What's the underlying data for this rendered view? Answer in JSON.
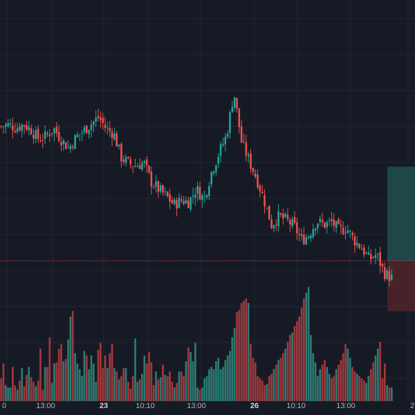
{
  "theme": {
    "background": "#161a25",
    "grid": "#232733",
    "up": "#26a69a",
    "down": "#ef5350",
    "up_volume": "#2b7c74",
    "down_volume": "#a1383c",
    "price_line": "#ef5350",
    "profit_zone": "#1f4a4a",
    "loss_zone": "#4a2328",
    "axis_text": "#b2b5be"
  },
  "chart_data": {
    "type": "candlestick",
    "title": "",
    "xlabel": "",
    "ylabel": "",
    "grid": true,
    "x_tick_labels": [
      {
        "label": "0",
        "bold": false
      },
      {
        "label": "13:00",
        "bold": false
      },
      {
        "label": "23",
        "bold": true
      },
      {
        "label": "10:10",
        "bold": false
      },
      {
        "label": "13:00",
        "bold": false
      },
      {
        "label": "26",
        "bold": true
      },
      {
        "label": "10:10",
        "bold": false
      },
      {
        "label": "13:00",
        "bold": false
      },
      {
        "label": "2",
        "bold": false
      }
    ],
    "close_path": [
      [
        0,
        63.5
      ],
      [
        3,
        63.8
      ],
      [
        6,
        63.2
      ],
      [
        9,
        63.9
      ],
      [
        12,
        62.8
      ],
      [
        15,
        61.0
      ],
      [
        18,
        61.6
      ],
      [
        21,
        63.1
      ],
      [
        24,
        60.9
      ],
      [
        27,
        59.2
      ],
      [
        30,
        61.4
      ],
      [
        33,
        62.7
      ],
      [
        36,
        64.0
      ],
      [
        39,
        65.3
      ],
      [
        42,
        63.0
      ],
      [
        45,
        62.1
      ],
      [
        48,
        57.4
      ],
      [
        51,
        56.2
      ],
      [
        54,
        55.8
      ],
      [
        57,
        56.4
      ],
      [
        60,
        52.6
      ],
      [
        63,
        51.1
      ],
      [
        66,
        49.8
      ],
      [
        69,
        48.2
      ],
      [
        72,
        49.0
      ],
      [
        75,
        48.7
      ],
      [
        78,
        51.3
      ],
      [
        81,
        49.2
      ],
      [
        84,
        54.5
      ],
      [
        87,
        58.3
      ],
      [
        90,
        61.7
      ],
      [
        93,
        70.2
      ],
      [
        96,
        60.5
      ],
      [
        99,
        56.8
      ],
      [
        102,
        53.4
      ],
      [
        105,
        49.1
      ],
      [
        108,
        44.2
      ],
      [
        111,
        45.9
      ],
      [
        114,
        45.1
      ],
      [
        117,
        44.0
      ],
      [
        120,
        41.2
      ],
      [
        123,
        42.3
      ],
      [
        126,
        45.0
      ],
      [
        129,
        44.2
      ],
      [
        132,
        44.8
      ],
      [
        135,
        43.1
      ],
      [
        138,
        43.6
      ],
      [
        141,
        41.2
      ],
      [
        144,
        39.7
      ],
      [
        147,
        37.5
      ],
      [
        150,
        38.4
      ],
      [
        153,
        34.8
      ],
      [
        156,
        33.8
      ]
    ],
    "volume": [
      20,
      33,
      14,
      12,
      12,
      30,
      14,
      10,
      18,
      29,
      13,
      23,
      30,
      21,
      17,
      13,
      18,
      46,
      10,
      30,
      30,
      56,
      16,
      33,
      34,
      46,
      50,
      35,
      37,
      54,
      74,
      79,
      42,
      33,
      28,
      22,
      44,
      40,
      28,
      40,
      33,
      17,
      45,
      51,
      29,
      40,
      29,
      42,
      50,
      29,
      26,
      19,
      22,
      29,
      29,
      17,
      11,
      22,
      55,
      17,
      19,
      24,
      40,
      33,
      43,
      34,
      14,
      26,
      19,
      21,
      32,
      23,
      22,
      26,
      17,
      12,
      16,
      26,
      26,
      22,
      35,
      47,
      43,
      35,
      51,
      12,
      10,
      12,
      20,
      22,
      28,
      30,
      28,
      35,
      38,
      28,
      30,
      36,
      40,
      44,
      56,
      64,
      78,
      80,
      86,
      88,
      90,
      86,
      50,
      38,
      34,
      22,
      20,
      18,
      14,
      15,
      22,
      24,
      28,
      32,
      36,
      38,
      42,
      46,
      52,
      58,
      60,
      66,
      70,
      74,
      82,
      90,
      95,
      100,
      58,
      42,
      34,
      22,
      28,
      32,
      36,
      30,
      24,
      20,
      22,
      28,
      32,
      36,
      42,
      50,
      46,
      38,
      30,
      26,
      24,
      22,
      20,
      18,
      16,
      22,
      28,
      34,
      40,
      46,
      52
    ],
    "volume_max": 100,
    "last_price_ratio": 0.52,
    "position_zone": {
      "profit_top": 0.34,
      "entry": 0.52,
      "loss_bottom": 0.63
    }
  }
}
